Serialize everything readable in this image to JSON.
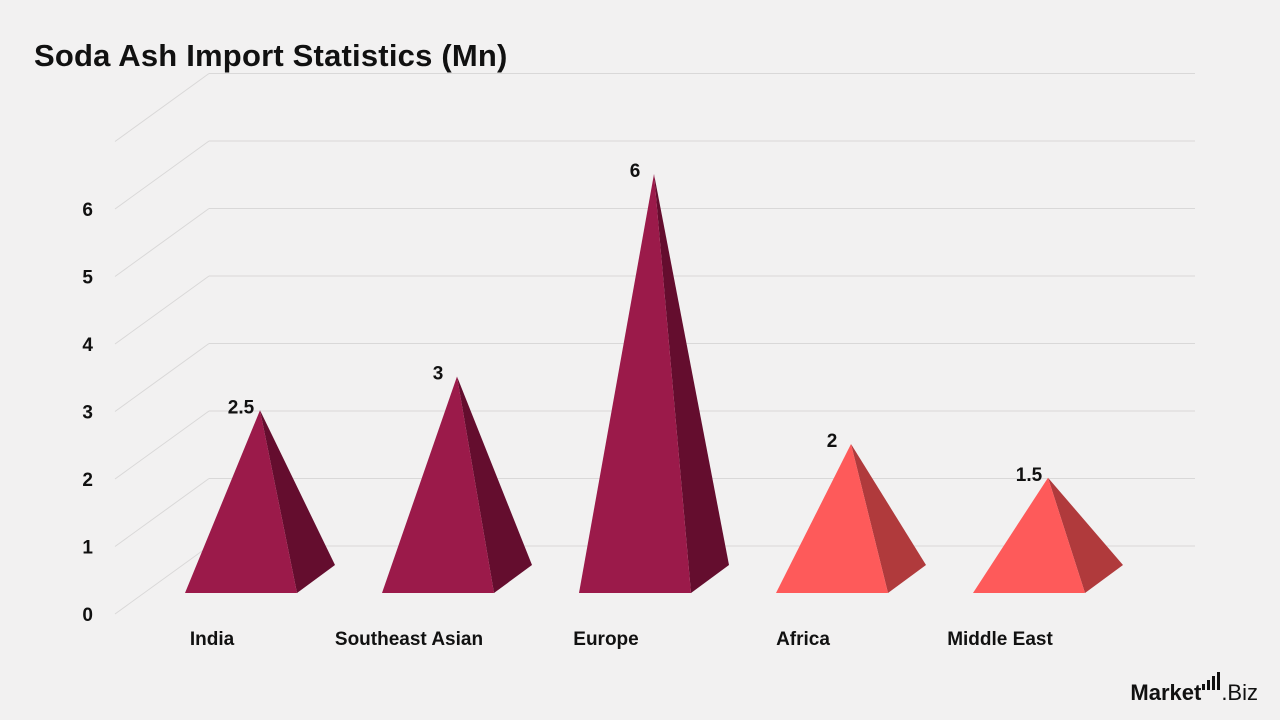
{
  "title": "Soda Ash Import Statistics (Mn)",
  "chart_data": {
    "type": "bar",
    "title": "Soda Ash Import Statistics (Mn)",
    "categories": [
      "India",
      "Southeast Asian",
      "Europe",
      "Africa",
      "Middle East"
    ],
    "values": [
      2.5,
      3,
      6,
      2,
      1.5
    ],
    "value_labels": [
      "2.5",
      "3",
      "6",
      "2",
      "1.5"
    ],
    "ylim": [
      0,
      7
    ],
    "yticks": [
      "0",
      "1",
      "2",
      "3",
      "4",
      "5",
      "6"
    ],
    "grid": true,
    "bar_shape": "pyramid",
    "colors": [
      "#9b1a4a",
      "#9b1a4a",
      "#9b1a4a",
      "#fe5a5a",
      "#fe5a5a"
    ],
    "shade_colors": [
      "#640d2e",
      "#640d2e",
      "#640d2e",
      "#b03a3c",
      "#b03a3c"
    ]
  },
  "logo": {
    "brand": "Market",
    "tld": ".Biz"
  },
  "colors": {
    "background": "#f2f1f1",
    "grid": "#d9d8d8"
  }
}
